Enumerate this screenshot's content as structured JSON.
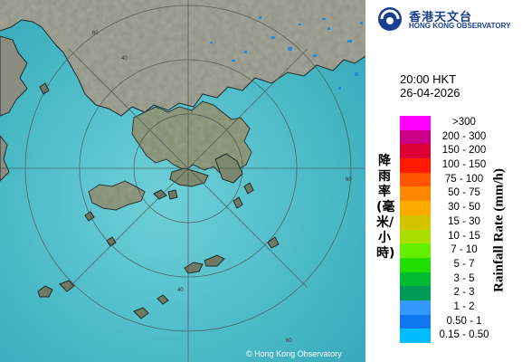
{
  "header": {
    "org_chinese": "香港天文台",
    "org_english": "HONG KONG OBSERVATORY"
  },
  "time": "20:00 HKT",
  "date": "26-04-2026",
  "copyright": "© Hong Kong Observatory",
  "legend": {
    "title_chinese": "降雨率(毫米/小時)",
    "title_english": "Rainfall Rate (mm/h)",
    "items": [
      {
        "label": ">300",
        "color": "#ff00ff"
      },
      {
        "label": "200 - 300",
        "color": "#cc0088"
      },
      {
        "label": "150 - 200",
        "color": "#dd0033"
      },
      {
        "label": "100 - 150",
        "color": "#ff1a00"
      },
      {
        "label": "75 - 100",
        "color": "#ff5500"
      },
      {
        "label": "50 - 75",
        "color": "#ff8800"
      },
      {
        "label": "30 - 50",
        "color": "#ffaa00"
      },
      {
        "label": "15 - 30",
        "color": "#d4c400"
      },
      {
        "label": "10 - 15",
        "color": "#aadd00"
      },
      {
        "label": "7 - 10",
        "color": "#66ee00"
      },
      {
        "label": "5 - 7",
        "color": "#22dd00"
      },
      {
        "label": "3 - 5",
        "color": "#00bb33"
      },
      {
        "label": "2 - 3",
        "color": "#009955"
      },
      {
        "label": "1 - 2",
        "color": "#3399ff"
      },
      {
        "label": "0.50 - 1",
        "color": "#1177ee"
      },
      {
        "label": "0.15 - 0.50",
        "color": "#00bbff"
      }
    ]
  },
  "range_ring_labels": [
    "60",
    "40",
    "60",
    "40",
    "60"
  ],
  "colors": {
    "sea": "#4bb6c4",
    "land": "#8e8f82",
    "logo_blue": "#1b3f8f"
  }
}
